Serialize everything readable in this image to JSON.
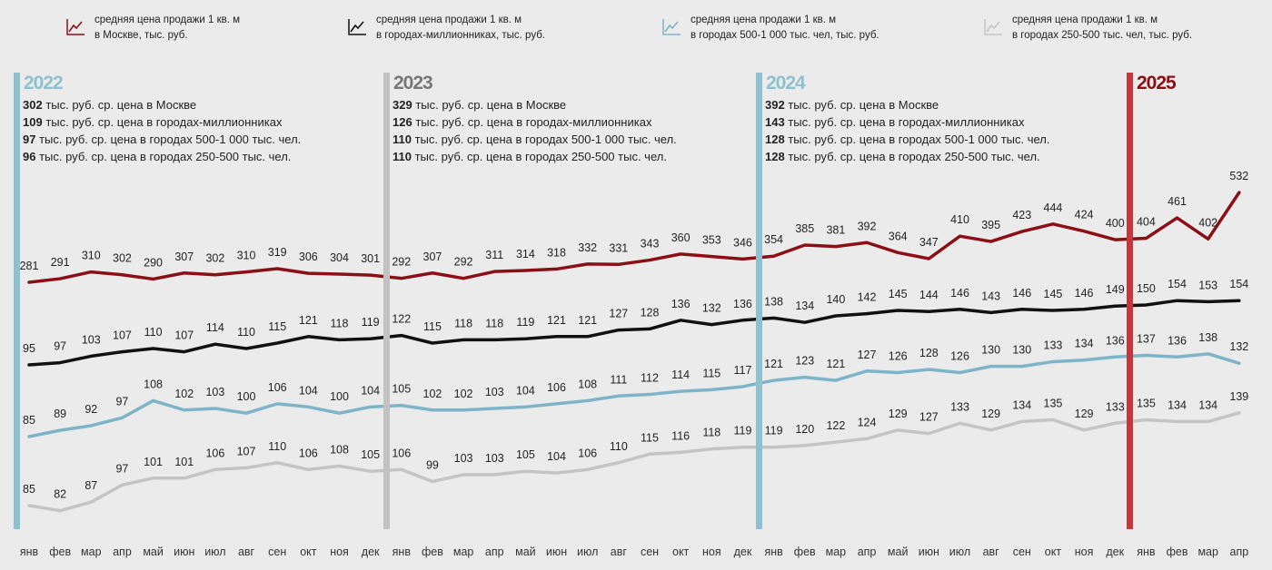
{
  "legend": [
    {
      "line1": "средняя цена продажи 1 кв. м",
      "line2": "в Москве, тыс. руб.",
      "color": "#8b0f14",
      "icon": "line-chart-icon"
    },
    {
      "line1": "средняя цена продажи 1 кв. м",
      "line2": "в городах-миллионниках, тыс. руб.",
      "color": "#111111",
      "icon": "line-chart-icon"
    },
    {
      "line1": "средняя цена продажи 1 кв. м",
      "line2": "в городах 500-1 000 тыс. чел, тыс. руб.",
      "color": "#7db4c8",
      "icon": "line-chart-icon"
    },
    {
      "line1": "средняя цена продажи 1 кв. м",
      "line2": "в городах 250-500 тыс. чел, тыс. руб.",
      "color": "#c4c4c4",
      "icon": "line-chart-icon"
    }
  ],
  "years": [
    {
      "label": "2022",
      "color": "#8fc0d0",
      "text_color": "#8fc0d0",
      "rows": [
        [
          "302",
          "тыс. руб. ср. цена в Москве"
        ],
        [
          "109",
          "тыс. руб. ср. цена в городах-миллионниках"
        ],
        [
          "97",
          "тыс. руб. ср. цена в городах 500-1 000 тыс. чел."
        ],
        [
          "96",
          "тыс. руб. ср. цена в городах 250-500 тыс. чел."
        ]
      ]
    },
    {
      "label": "2023",
      "color": "#c2c2c2",
      "text_color": "#777777",
      "rows": [
        [
          "329",
          "тыс. руб. ср. цена в Москве"
        ],
        [
          "126",
          "тыс. руб. ср. цена в городах-миллионниках"
        ],
        [
          "110",
          "тыс. руб. ср. цена в городах 500-1 000 тыс. чел."
        ],
        [
          "110",
          "тыс. руб. ср. цена в городах 250-500 тыс. чел."
        ]
      ]
    },
    {
      "label": "2024",
      "color": "#8fc0d0",
      "text_color": "#8fc0d0",
      "rows": [
        [
          "392",
          "тыс. руб. ср. цена в Москве"
        ],
        [
          "143",
          "тыс. руб. ср. цена в городах-миллионниках"
        ],
        [
          "128",
          "тыс. руб. ср. цена в городах 500-1 000 тыс. чел."
        ],
        [
          "128",
          "тыс. руб. ср. цена в городах 250-500 тыс. чел."
        ]
      ]
    },
    {
      "label": "2025",
      "color": "#c0393d",
      "text_color": "#8b0f14",
      "rows": []
    }
  ],
  "chart_data": {
    "type": "line",
    "title": "",
    "xlabel": "",
    "ylabel": "",
    "grid": false,
    "legend_position": "top",
    "categories": [
      "янв",
      "фев",
      "мар",
      "апр",
      "май",
      "июн",
      "июл",
      "авг",
      "сен",
      "окт",
      "ноя",
      "дек",
      "янв",
      "фев",
      "мар",
      "апр",
      "май",
      "июн",
      "июл",
      "авг",
      "сен",
      "окт",
      "ноя",
      "дек",
      "янв",
      "фев",
      "мар",
      "апр",
      "май",
      "июн",
      "июл",
      "авг",
      "сен",
      "окт",
      "ноя",
      "дек",
      "янв",
      "фев",
      "мар",
      "апр"
    ],
    "series": [
      {
        "name": "средняя цена продажи 1 кв. м в Москве, тыс. руб.",
        "color": "#8b0f14",
        "values": [
          281,
          291,
          310,
          302,
          290,
          307,
          302,
          310,
          319,
          306,
          304,
          301,
          292,
          307,
          292,
          311,
          314,
          318,
          332,
          331,
          343,
          360,
          353,
          346,
          354,
          385,
          381,
          392,
          364,
          347,
          410,
          395,
          423,
          444,
          424,
          400,
          404,
          461,
          402,
          532
        ]
      },
      {
        "name": "средняя цена продажи 1 кв. м в городах-миллионниках, тыс. руб.",
        "color": "#111111",
        "values": [
          95,
          97,
          103,
          107,
          110,
          107,
          114,
          110,
          115,
          121,
          118,
          119,
          122,
          115,
          118,
          118,
          119,
          121,
          121,
          127,
          128,
          136,
          132,
          136,
          138,
          134,
          140,
          142,
          145,
          144,
          146,
          143,
          146,
          145,
          146,
          149,
          150,
          154,
          153,
          154
        ]
      },
      {
        "name": "средняя цена продажи 1 кв. м в городах 500-1 000 тыс. чел, тыс. руб.",
        "color": "#7db4c8",
        "values": [
          85,
          89,
          92,
          97,
          108,
          102,
          103,
          100,
          106,
          104,
          100,
          104,
          105,
          102,
          102,
          103,
          104,
          106,
          108,
          111,
          112,
          114,
          115,
          117,
          121,
          123,
          121,
          127,
          126,
          128,
          126,
          130,
          130,
          133,
          134,
          136,
          137,
          136,
          138,
          132
        ]
      },
      {
        "name": "средняя цена продажи 1 кв. м в городах 250-500 тыс. чел, тыс. руб.",
        "color": "#c4c4c4",
        "values": [
          85,
          82,
          87,
          97,
          101,
          101,
          106,
          107,
          110,
          106,
          108,
          105,
          106,
          99,
          103,
          103,
          105,
          104,
          106,
          110,
          115,
          116,
          118,
          119,
          119,
          120,
          122,
          124,
          129,
          127,
          133,
          129,
          134,
          135,
          129,
          133,
          135,
          134,
          134,
          139
        ]
      }
    ]
  }
}
